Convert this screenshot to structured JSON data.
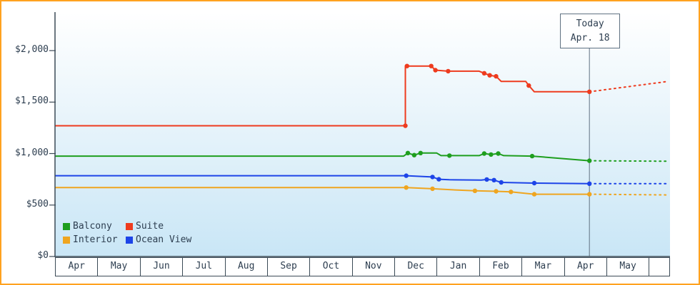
{
  "legend": {
    "items": [
      {
        "label": "Balcony",
        "color": "#1e9e1e"
      },
      {
        "label": "Suite",
        "color": "#ee3b1e"
      },
      {
        "label": "Interior",
        "color": "#efa51f"
      },
      {
        "label": "Ocean View",
        "color": "#1d44e8"
      }
    ]
  },
  "chart_data": {
    "type": "line",
    "title": "",
    "x_axis": {
      "tick_labels": [
        "Apr",
        "May",
        "Jun",
        "Jul",
        "Aug",
        "Sep",
        "Oct",
        "Nov",
        "Dec",
        "Jan",
        "Feb",
        "Mar",
        "Apr",
        "May"
      ],
      "span_months": 14.5
    },
    "y_axis": {
      "tick_values": [
        0,
        500,
        1000,
        1500,
        2000
      ],
      "tick_labels": [
        "$0",
        "$500",
        "$1,000",
        "$1,500",
        "$2,000"
      ],
      "range": [
        0,
        2370
      ]
    },
    "today_line": {
      "label": "Today",
      "date": "Apr. 18",
      "x": 12.6
    },
    "series": [
      {
        "name": "Balcony",
        "color": "#1e9e1e",
        "solid": [
          [
            0,
            975
          ],
          [
            8.22,
            975
          ],
          [
            8.32,
            1005
          ],
          [
            8.47,
            985
          ],
          [
            8.62,
            1005
          ],
          [
            9.0,
            1005
          ],
          [
            9.1,
            980
          ],
          [
            10.0,
            980
          ],
          [
            10.12,
            1000
          ],
          [
            10.28,
            990
          ],
          [
            10.45,
            1000
          ],
          [
            10.58,
            980
          ],
          [
            11.25,
            975
          ],
          [
            12.6,
            930
          ]
        ],
        "markers": [
          [
            8.32,
            1005
          ],
          [
            8.47,
            985
          ],
          [
            8.62,
            1005
          ],
          [
            9.3,
            980
          ],
          [
            10.12,
            1000
          ],
          [
            10.28,
            990
          ],
          [
            10.45,
            1000
          ],
          [
            11.25,
            975
          ],
          [
            12.6,
            930
          ]
        ],
        "dashed_forecast": [
          [
            12.6,
            930
          ],
          [
            14.45,
            925
          ]
        ]
      },
      {
        "name": "Suite",
        "color": "#ee3b1e",
        "solid": [
          [
            0,
            1270
          ],
          [
            8.26,
            1270
          ],
          [
            8.26,
            1850
          ],
          [
            8.87,
            1850
          ],
          [
            8.97,
            1810
          ],
          [
            9.27,
            1800
          ],
          [
            10.0,
            1800
          ],
          [
            10.12,
            1780
          ],
          [
            10.25,
            1760
          ],
          [
            10.4,
            1750
          ],
          [
            10.52,
            1700
          ],
          [
            11.1,
            1700
          ],
          [
            11.17,
            1660
          ],
          [
            11.3,
            1600
          ],
          [
            12.6,
            1600
          ]
        ],
        "markers": [
          [
            8.26,
            1270
          ],
          [
            8.3,
            1850
          ],
          [
            8.87,
            1850
          ],
          [
            8.97,
            1810
          ],
          [
            9.27,
            1800
          ],
          [
            10.12,
            1780
          ],
          [
            10.25,
            1760
          ],
          [
            10.4,
            1750
          ],
          [
            11.17,
            1660
          ],
          [
            12.6,
            1600
          ]
        ],
        "dashed_forecast": [
          [
            12.6,
            1600
          ],
          [
            14.45,
            1700
          ]
        ]
      },
      {
        "name": "Interior",
        "color": "#efa51f",
        "solid": [
          [
            0,
            670
          ],
          [
            8.28,
            670
          ],
          [
            8.9,
            658
          ],
          [
            9.5,
            645
          ],
          [
            9.9,
            638
          ],
          [
            10.4,
            633
          ],
          [
            10.75,
            628
          ],
          [
            11.3,
            605
          ],
          [
            12.6,
            605
          ]
        ],
        "markers": [
          [
            8.28,
            670
          ],
          [
            8.9,
            658
          ],
          [
            9.9,
            638
          ],
          [
            10.4,
            633
          ],
          [
            10.75,
            628
          ],
          [
            11.3,
            605
          ],
          [
            12.6,
            605
          ]
        ],
        "dashed_forecast": [
          [
            12.6,
            605
          ],
          [
            14.45,
            598
          ]
        ]
      },
      {
        "name": "Ocean View",
        "color": "#1d44e8",
        "solid": [
          [
            0,
            785
          ],
          [
            8.28,
            785
          ],
          [
            8.9,
            772
          ],
          [
            9.05,
            750
          ],
          [
            9.3,
            745
          ],
          [
            10.05,
            742
          ],
          [
            10.18,
            748
          ],
          [
            10.35,
            742
          ],
          [
            10.52,
            720
          ],
          [
            11.3,
            713
          ],
          [
            12.6,
            707
          ]
        ],
        "markers": [
          [
            8.28,
            785
          ],
          [
            8.9,
            772
          ],
          [
            9.05,
            750
          ],
          [
            10.18,
            748
          ],
          [
            10.35,
            742
          ],
          [
            10.52,
            720
          ],
          [
            11.3,
            713
          ],
          [
            12.6,
            707
          ]
        ],
        "dashed_forecast": [
          [
            12.6,
            707
          ],
          [
            14.45,
            707
          ]
        ]
      }
    ]
  }
}
